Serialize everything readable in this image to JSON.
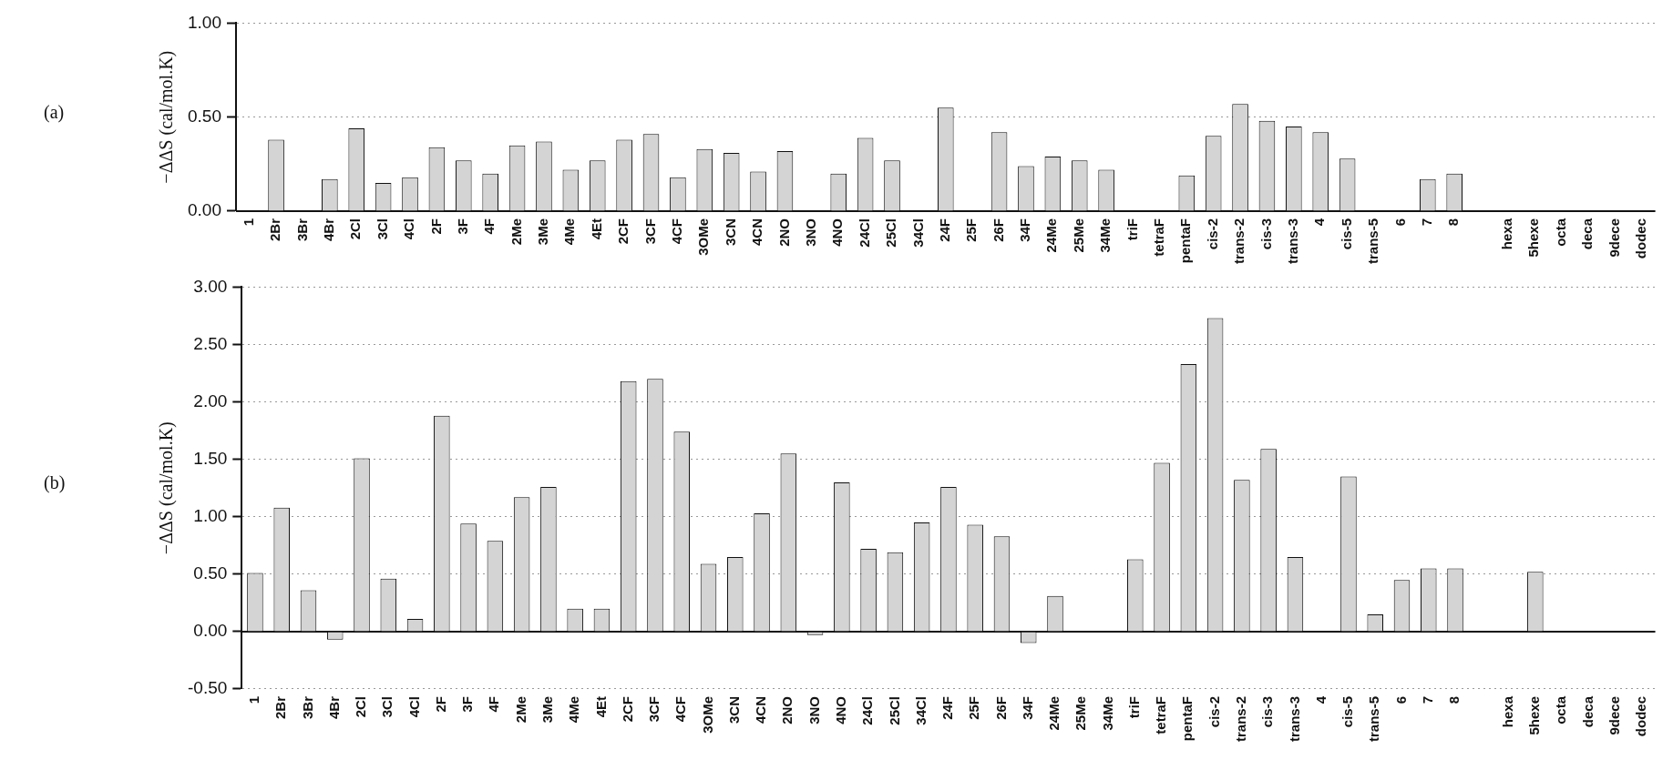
{
  "chart_data": [
    {
      "type": "bar",
      "annotations": [
        "(a)"
      ],
      "ylabel": "−ΔΔS (cal/mol.K)",
      "categories": [
        "1",
        "2Br",
        "3Br",
        "4Br",
        "2Cl",
        "3Cl",
        "4Cl",
        "2F",
        "3F",
        "4F",
        "2Me",
        "3Me",
        "4Me",
        "4Et",
        "2CF",
        "3CF",
        "4CF",
        "3OMe",
        "3CN",
        "4CN",
        "2NO",
        "3NO",
        "4NO",
        "24Cl",
        "25Cl",
        "34Cl",
        "24F",
        "25F",
        "26F",
        "34F",
        "24Me",
        "25Me",
        "34Me",
        "triF",
        "tetraF",
        "pentaF",
        "cis-2",
        "trans-2",
        "cis-3",
        "trans-3",
        "4",
        "cis-5",
        "trans-5",
        "6",
        "7",
        "8",
        null,
        "hexa",
        "5hexe",
        "octa",
        "deca",
        "9dece",
        "dodec"
      ],
      "values": [
        0,
        0.38,
        0,
        0.17,
        0.44,
        0.15,
        0.18,
        0.34,
        0.27,
        0.2,
        0.35,
        0.37,
        0.22,
        0.27,
        0.38,
        0.41,
        0.18,
        0.33,
        0.31,
        0.21,
        0.32,
        0,
        0.2,
        0.39,
        0.27,
        0,
        0.55,
        0,
        0.42,
        0.24,
        0.29,
        0.27,
        0.22,
        0,
        0,
        0.19,
        0.4,
        0.57,
        0.48,
        0.45,
        0.42,
        0.28,
        0,
        0,
        0.17,
        0.2,
        0,
        0,
        0,
        0,
        0,
        0,
        0
      ],
      "color": "#d4d4d4",
      "ylim": [
        0,
        1
      ],
      "yticks": [
        {
          "value": 0,
          "label": "0.00"
        },
        {
          "value": 0.5,
          "label": "0.50"
        },
        {
          "value": 1,
          "label": "1.00"
        }
      ],
      "grid": "y"
    },
    {
      "type": "bar",
      "annotations": [
        "(b)"
      ],
      "ylabel": "−ΔΔS (cal/mol.K)",
      "categories": [
        "1",
        "2Br",
        "3Br",
        "4Br",
        "2Cl",
        "3Cl",
        "4Cl",
        "2F",
        "3F",
        "4F",
        "2Me",
        "3Me",
        "4Me",
        "4Et",
        "2CF",
        "3CF",
        "4CF",
        "3OMe",
        "3CN",
        "4CN",
        "2NO",
        "3NO",
        "4NO",
        "24Cl",
        "25Cl",
        "34Cl",
        "24F",
        "25F",
        "26F",
        "34F",
        "24Me",
        "25Me",
        "34Me",
        "triF",
        "tetraF",
        "pentaF",
        "cis-2",
        "trans-2",
        "cis-3",
        "trans-3",
        "4",
        "cis-5",
        "trans-5",
        "6",
        "7",
        "8",
        null,
        "hexa",
        "5hexe",
        "octa",
        "deca",
        "9dece",
        "dodec"
      ],
      "values": [
        0.51,
        1.08,
        0.36,
        -0.07,
        1.51,
        0.46,
        0.11,
        1.88,
        0.94,
        0.79,
        1.17,
        1.26,
        0.2,
        0.2,
        2.18,
        2.2,
        1.74,
        0.59,
        0.65,
        1.03,
        1.55,
        -0.03,
        1.3,
        0.72,
        0.69,
        0.95,
        1.26,
        0.93,
        0.83,
        -0.1,
        0.31,
        0,
        0,
        0.63,
        1.47,
        2.33,
        2.73,
        1.32,
        1.59,
        0.65,
        0,
        1.35,
        0.15,
        0.45,
        0.55,
        0.55,
        0,
        0,
        0.52,
        0,
        0,
        0,
        0
      ],
      "color": "#d4d4d4",
      "ylim": [
        -0.5,
        3
      ],
      "yticks": [
        {
          "value": -0.5,
          "label": "-0.50"
        },
        {
          "value": 0,
          "label": "0.00"
        },
        {
          "value": 0.5,
          "label": "0.50"
        },
        {
          "value": 1,
          "label": "1.00"
        },
        {
          "value": 1.5,
          "label": "1.50"
        },
        {
          "value": 2,
          "label": "2.00"
        },
        {
          "value": 2.5,
          "label": "2.50"
        },
        {
          "value": 3,
          "label": "3.00"
        }
      ],
      "grid": "y"
    }
  ]
}
